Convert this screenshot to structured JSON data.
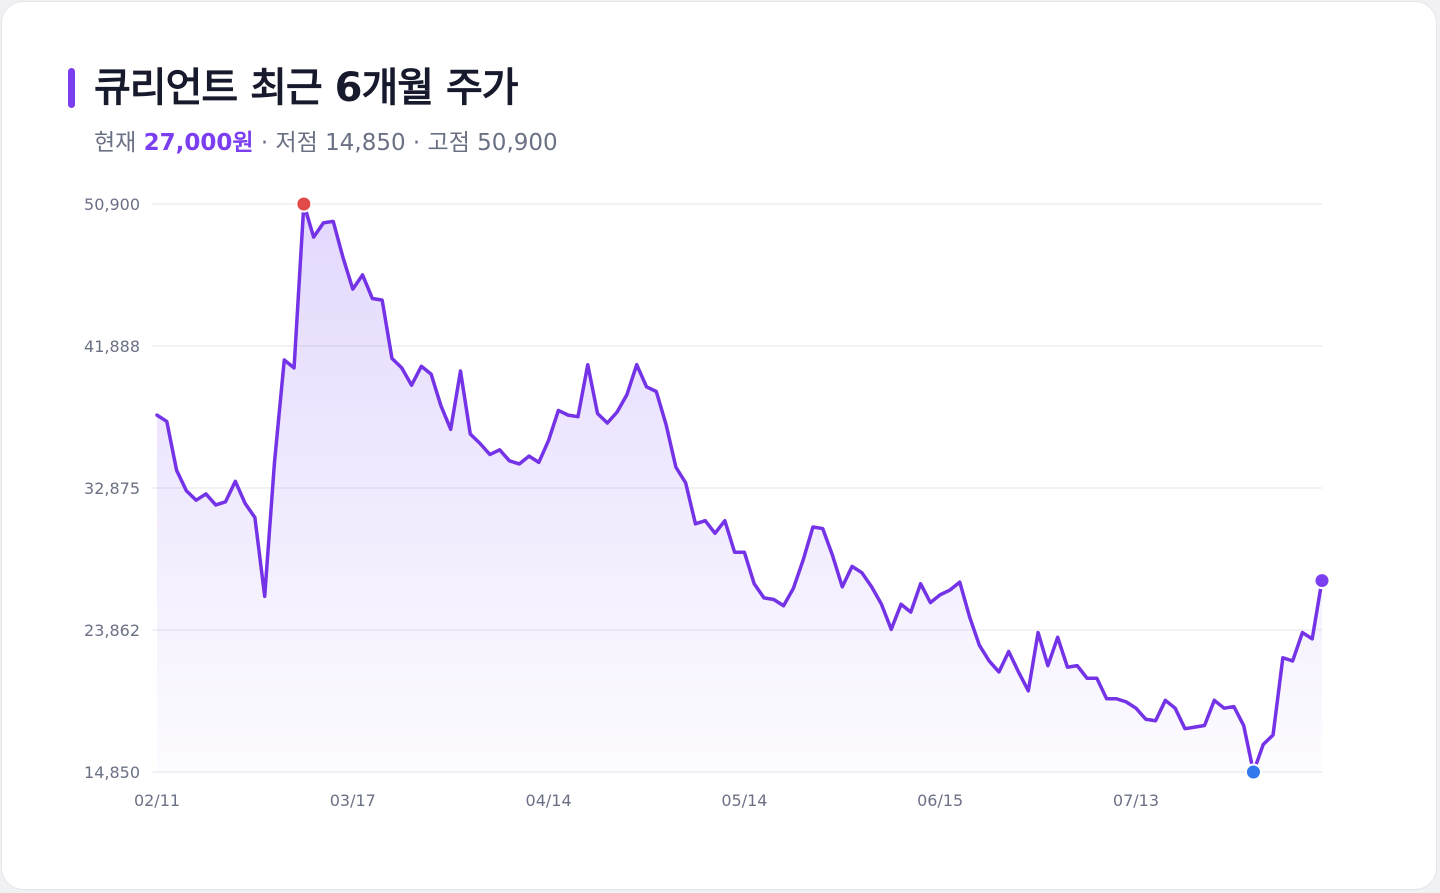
{
  "header": {
    "title": "큐리언트 최근 6개월 주가",
    "current_label": "현재",
    "current_value": "27,000원",
    "low_text": "· 저점 14,850",
    "high_text": "· 고점 50,900"
  },
  "colors": {
    "accent": "#7b3ff0",
    "line": "#7433e6",
    "grid": "#e6e6ee",
    "high_marker": "#e24a4a",
    "low_marker": "#2f78ee",
    "last_marker": "#7b3ff0"
  },
  "chart_data": {
    "type": "area",
    "title": "큐리언트 최근 6개월 주가",
    "xlabel": "",
    "ylabel": "",
    "ylim": [
      14850,
      50900
    ],
    "yticks": [
      50900,
      41888,
      32875,
      23862,
      14850
    ],
    "ytick_labels": [
      "50,900",
      "41,888",
      "32,875",
      "23,862",
      "14,850"
    ],
    "xtick_labels": [
      "02/11",
      "03/17",
      "04/14",
      "05/14",
      "06/15",
      "07/13"
    ],
    "xtick_index": [
      0,
      20,
      40,
      60,
      80,
      100
    ],
    "grid": true,
    "legend": "none",
    "markers": {
      "high_index": 15,
      "low_index": 112,
      "last_index": 119
    },
    "series": [
      {
        "values": [
          37500,
          37100,
          34000,
          32700,
          32100,
          32500,
          31800,
          32000,
          33300,
          31900,
          31000,
          26000,
          34500,
          41000,
          40500,
          50900,
          48800,
          49700,
          49800,
          47500,
          45500,
          46400,
          44900,
          44800,
          41100,
          40500,
          39400,
          40600,
          40100,
          38100,
          36600,
          40300,
          36300,
          35700,
          35000,
          35300,
          34600,
          34400,
          34900,
          34500,
          35900,
          37800,
          37500,
          37400,
          40700,
          37600,
          37000,
          37700,
          38800,
          40700,
          39300,
          39000,
          36900,
          34200,
          33200,
          30600,
          30800,
          30000,
          30800,
          28800,
          28800,
          26800,
          25900,
          25800,
          25400,
          26500,
          28300,
          30400,
          30300,
          28600,
          26600,
          27900,
          27500,
          26600,
          25500,
          23900,
          25500,
          25000,
          26800,
          25600,
          26100,
          26400,
          26900,
          24700,
          22900,
          21900,
          21200,
          22500,
          21200,
          20000,
          23700,
          21600,
          23400,
          21500,
          21600,
          20800,
          20800,
          19500,
          19500,
          19300,
          18900,
          18200,
          18100,
          19400,
          18900,
          17600,
          17700,
          17800,
          19400,
          18900,
          19000,
          17800,
          14850,
          16600,
          17200,
          22100,
          21900,
          23700,
          23300,
          27000
        ]
      }
    ]
  }
}
